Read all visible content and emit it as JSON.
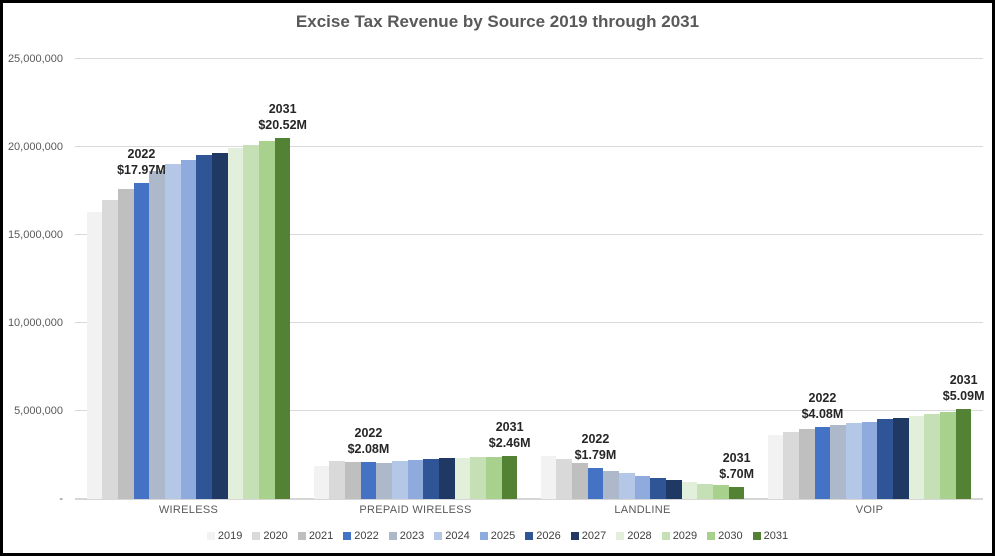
{
  "chart_data": {
    "type": "bar",
    "title": "Excise Tax Revenue by Source 2019 through 2031",
    "categories": [
      "WIRELESS",
      "PREPAID WIRELESS",
      "LANDLINE",
      "VOIP"
    ],
    "unit": "USD, values in millions",
    "ylim": [
      0,
      25000000
    ],
    "ymax_millions": 25,
    "grid": "horizontal",
    "legend_position": "bottom",
    "y_ticks": [
      {
        "label": "25,000,000",
        "value_millions": 25
      },
      {
        "label": "20,000,000",
        "value_millions": 20
      },
      {
        "label": "15,000,000",
        "value_millions": 15
      },
      {
        "label": "10,000,000",
        "value_millions": 10
      },
      {
        "label": "5,000,000",
        "value_millions": 5
      },
      {
        "label": "-",
        "value_millions": 0
      }
    ],
    "series": [
      {
        "name": "2019",
        "color": "#f2f2f2",
        "values_millions": [
          16.3,
          1.85,
          2.45,
          3.62
        ]
      },
      {
        "name": "2020",
        "color": "#d9d9d9",
        "values_millions": [
          17.0,
          2.15,
          2.27,
          3.8
        ]
      },
      {
        "name": "2021",
        "color": "#bfbfbf",
        "values_millions": [
          17.6,
          2.1,
          2.07,
          3.95
        ]
      },
      {
        "name": "2022",
        "color": "#4472c4",
        "values_millions": [
          17.97,
          2.08,
          1.79,
          4.08
        ]
      },
      {
        "name": "2023",
        "color": "#adb9ca",
        "values_millions": [
          18.62,
          2.04,
          1.62,
          4.22
        ]
      },
      {
        "name": "2024",
        "color": "#b4c7e7",
        "values_millions": [
          19.05,
          2.18,
          1.47,
          4.3
        ]
      },
      {
        "name": "2025",
        "color": "#8faadc",
        "values_millions": [
          19.25,
          2.22,
          1.33,
          4.4
        ]
      },
      {
        "name": "2026",
        "color": "#2f5597",
        "values_millions": [
          19.55,
          2.26,
          1.18,
          4.55
        ]
      },
      {
        "name": "2027",
        "color": "#203864",
        "values_millions": [
          19.68,
          2.32,
          1.06,
          4.63
        ]
      },
      {
        "name": "2028",
        "color": "#e2efda",
        "values_millions": [
          19.95,
          2.32,
          0.95,
          4.72
        ]
      },
      {
        "name": "2029",
        "color": "#c5e0b4",
        "values_millions": [
          20.1,
          2.36,
          0.87,
          4.85
        ]
      },
      {
        "name": "2030",
        "color": "#a9d18e",
        "values_millions": [
          20.33,
          2.41,
          0.78,
          4.95
        ]
      },
      {
        "name": "2031",
        "color": "#548235",
        "values_millions": [
          20.52,
          2.46,
          0.7,
          5.09
        ]
      }
    ],
    "annotations": [
      {
        "category_index": 0,
        "series_index": 3,
        "line1": "2022",
        "line2": "$17.97M"
      },
      {
        "category_index": 0,
        "series_index": 12,
        "line1": "2031",
        "line2": "$20.52M"
      },
      {
        "category_index": 1,
        "series_index": 3,
        "line1": "2022",
        "line2": "$2.08M"
      },
      {
        "category_index": 1,
        "series_index": 12,
        "line1": "2031",
        "line2": "$2.46M"
      },
      {
        "category_index": 2,
        "series_index": 3,
        "line1": "2022",
        "line2": "$1.79M"
      },
      {
        "category_index": 2,
        "series_index": 12,
        "line1": "2031",
        "line2": "$.70M"
      },
      {
        "category_index": 3,
        "series_index": 3,
        "line1": "2022",
        "line2": "$4.08M"
      },
      {
        "category_index": 3,
        "series_index": 12,
        "line1": "2031",
        "line2": "$5.09M"
      }
    ]
  }
}
